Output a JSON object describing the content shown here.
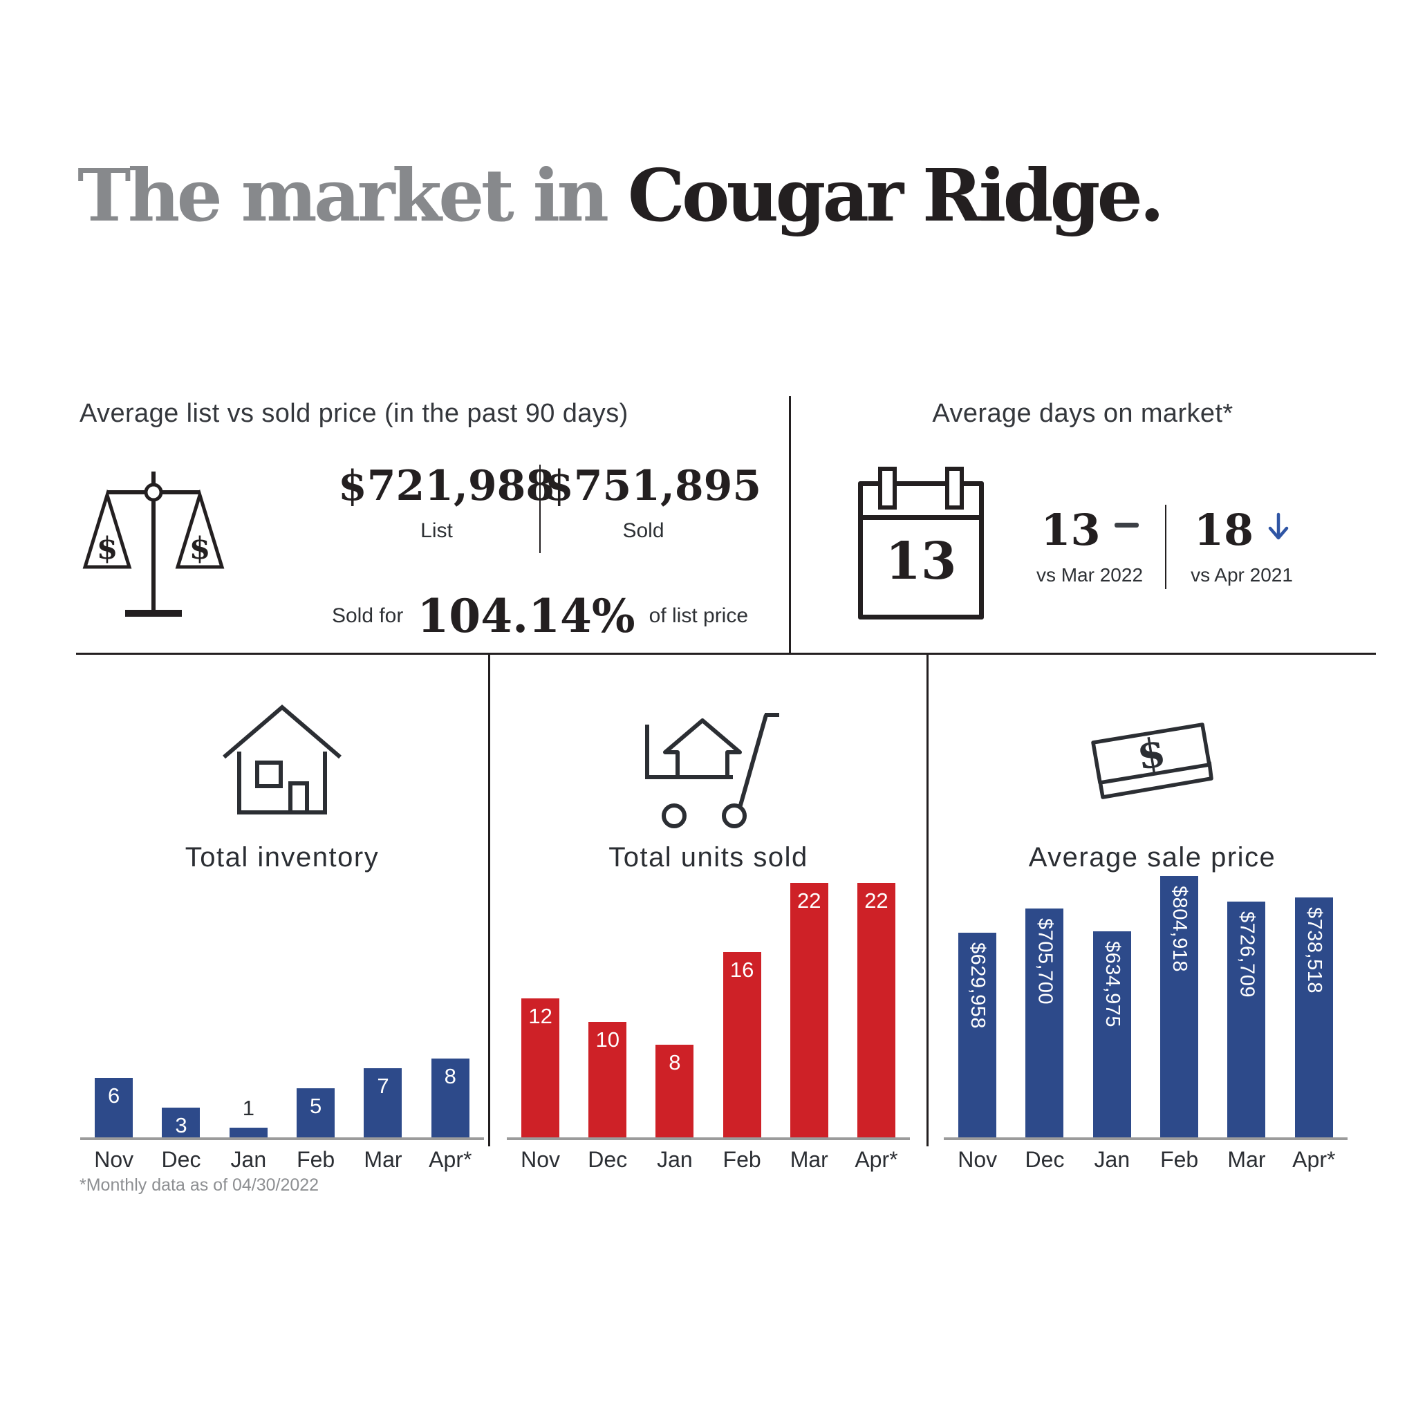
{
  "page": {
    "title_gray": "The market in ",
    "title_black": "Cougar Ridge.",
    "footnote": "*Monthly data as of 04/30/2022"
  },
  "colors": {
    "bar_blue": "#2d4a8a",
    "bar_red": "#ce2127",
    "arrow_blue": "#2f55a4",
    "axis_gray": "#9b9b9b",
    "title_gray": "#87898c",
    "ink": "#231f20"
  },
  "list_vs_sold": {
    "heading": "Average list vs sold price (in the past 90 days)",
    "list_value": "$721,988",
    "list_label": "List",
    "sold_value": "$751,895",
    "sold_label": "Sold",
    "ratio_prefix": "Sold for",
    "ratio_value": "104.14%",
    "ratio_suffix": "of list price"
  },
  "days_on_market": {
    "heading": "Average days on market*",
    "current": "13",
    "vs_prev_month": {
      "value": "13",
      "indicator": "flat",
      "label": "vs Mar 2022"
    },
    "vs_prev_year": {
      "value": "18",
      "indicator": "down",
      "label": "vs Apr 2021"
    }
  },
  "chart_data": [
    {
      "type": "bar",
      "title": "Total inventory",
      "categories": [
        "Nov",
        "Dec",
        "Jan",
        "Feb",
        "Mar",
        "Apr*"
      ],
      "values": [
        6,
        3,
        1,
        5,
        7,
        8
      ],
      "value_labels": [
        "6",
        "3",
        "1",
        "5",
        "7",
        "8"
      ],
      "bar_color": "#2d4a8a",
      "label_style": "horizontal",
      "ylim": [
        0,
        8
      ],
      "grid": false,
      "legend": "none"
    },
    {
      "type": "bar",
      "title": "Total units sold",
      "categories": [
        "Nov",
        "Dec",
        "Jan",
        "Feb",
        "Mar",
        "Apr*"
      ],
      "values": [
        12,
        10,
        8,
        16,
        22,
        22
      ],
      "value_labels": [
        "12",
        "10",
        "8",
        "16",
        "22",
        "22"
      ],
      "bar_color": "#ce2127",
      "label_style": "horizontal",
      "ylim": [
        0,
        22
      ],
      "grid": false,
      "legend": "none"
    },
    {
      "type": "bar",
      "title": "Average sale price",
      "categories": [
        "Nov",
        "Dec",
        "Jan",
        "Feb",
        "Mar",
        "Apr*"
      ],
      "values": [
        629958,
        705700,
        634975,
        804918,
        726709,
        738518
      ],
      "value_labels": [
        "$629,958",
        "$705,700",
        "$634,975",
        "$804,918",
        "$726,709",
        "$738,518"
      ],
      "bar_color": "#2d4a8a",
      "label_style": "vertical",
      "ylim": [
        0,
        804918
      ],
      "grid": false,
      "legend": "none"
    }
  ]
}
